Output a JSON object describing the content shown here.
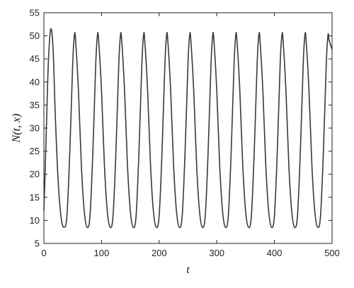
{
  "chart_data": {
    "type": "line",
    "title": "",
    "xlabel": "t",
    "ylabel": "N(t, x)",
    "xlim": [
      0,
      500
    ],
    "ylim": [
      5,
      55
    ],
    "xticks": [
      "0",
      "100",
      "200",
      "300",
      "400",
      "500"
    ],
    "yticks": [
      "5",
      "10",
      "15",
      "20",
      "25",
      "30",
      "35",
      "40",
      "45",
      "50",
      "55"
    ],
    "grid": false,
    "legend": "none",
    "line_color": "#3a3a3a",
    "series": [
      {
        "x": [
          0,
          2,
          5,
          8,
          12,
          16,
          20,
          25,
          30,
          35,
          40,
          45,
          50,
          53,
          55,
          60,
          65,
          70,
          75,
          80,
          85,
          90,
          93,
          95,
          100,
          105,
          110,
          115,
          120,
          125,
          130,
          133,
          135,
          140,
          145,
          150,
          155,
          160,
          165,
          170,
          173,
          175,
          180,
          185,
          190,
          195,
          200,
          205,
          210,
          213,
          215,
          220,
          225,
          230,
          235,
          240,
          245,
          250,
          253,
          255,
          260,
          265,
          270,
          275,
          280,
          285,
          290,
          293,
          295,
          300,
          305,
          310,
          315,
          320,
          325,
          330,
          333,
          335,
          340,
          345,
          350,
          355,
          360,
          365,
          370,
          373,
          375,
          380,
          385,
          390,
          395,
          400,
          405,
          410,
          413,
          415,
          420,
          425,
          430,
          435,
          440,
          445,
          450,
          453,
          455,
          460,
          465,
          470,
          475,
          480,
          485,
          490,
          493,
          495,
          500
        ],
        "y": [
          12,
          20,
          33,
          45,
          51.5,
          47,
          32,
          18,
          10.5,
          8.5,
          11,
          25,
          44,
          50.2,
          49,
          38,
          22,
          12,
          8.5,
          11,
          25,
          44,
          50.2,
          49,
          38,
          22,
          12,
          8.5,
          11,
          25,
          44,
          50.2,
          49,
          38,
          22,
          12,
          8.5,
          11,
          25,
          44,
          50.2,
          49,
          38,
          22,
          12,
          8.5,
          11,
          25,
          44,
          50.2,
          49,
          38,
          22,
          12,
          8.5,
          11,
          25,
          44,
          50.2,
          49,
          38,
          22,
          12,
          8.5,
          11,
          25,
          44,
          50.2,
          49,
          38,
          22,
          12,
          8.5,
          11,
          25,
          44,
          50.2,
          49,
          38,
          22,
          12,
          8.5,
          11,
          25,
          44,
          50.2,
          49,
          38,
          22,
          12,
          8.5,
          11,
          25,
          44,
          50.2,
          49,
          38,
          22,
          12,
          8.5,
          11,
          25,
          44,
          50.2,
          49,
          38,
          22,
          12,
          8.5,
          11,
          25,
          44,
          50.2,
          49,
          47
        ]
      }
    ]
  }
}
